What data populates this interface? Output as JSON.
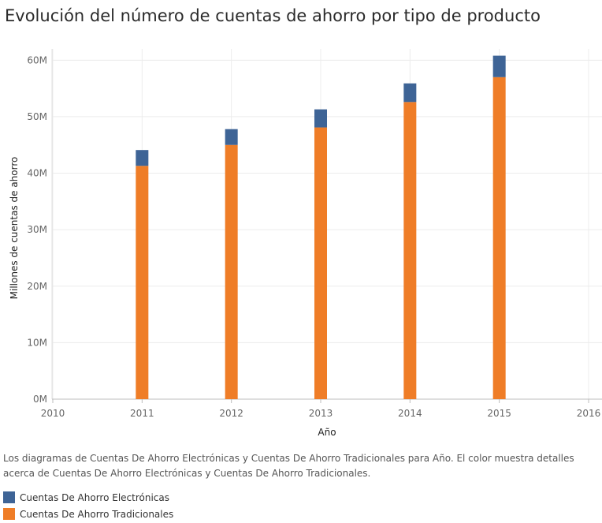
{
  "title": "Evolución del número de cuentas de ahorro por tipo de producto",
  "caption": "Los diagramas de Cuentas De Ahorro Electrónicas y Cuentas De Ahorro Tradicionales para Año.  El color muestra detalles acerca de Cuentas De Ahorro Electrónicas y Cuentas De Ahorro Tradicionales.",
  "legend": [
    {
      "label": "Cuentas De Ahorro Electrónicas",
      "color": "#3e6496"
    },
    {
      "label": "Cuentas De Ahorro Tradicionales",
      "color": "#ef7d27"
    }
  ],
  "chart_data": {
    "type": "bar",
    "stacked": true,
    "title": "Evolución del número de cuentas de ahorro por tipo de producto",
    "xlabel": "Año",
    "ylabel": "Millones de cuentas de ahorro",
    "xlim": [
      2010,
      2016
    ],
    "x_ticks": [
      "2010",
      "2011",
      "2012",
      "2013",
      "2014",
      "2015",
      "2016"
    ],
    "ylim": [
      0,
      62
    ],
    "y_ticks": [
      0,
      10,
      20,
      30,
      40,
      50,
      60
    ],
    "y_tick_labels": [
      "0M",
      "10M",
      "20M",
      "30M",
      "40M",
      "50M",
      "60M"
    ],
    "x": [
      2011,
      2012,
      2013,
      2014,
      2015
    ],
    "series": [
      {
        "name": "Cuentas De Ahorro Tradicionales",
        "color": "#ef7d27",
        "values": [
          41.3,
          45.0,
          48.1,
          52.6,
          57.0
        ]
      },
      {
        "name": "Cuentas De Ahorro Electrónicas",
        "color": "#3e6496",
        "values": [
          2.8,
          2.8,
          3.2,
          3.3,
          3.8
        ]
      }
    ],
    "grid": true,
    "legend_position": "bottom-left"
  }
}
